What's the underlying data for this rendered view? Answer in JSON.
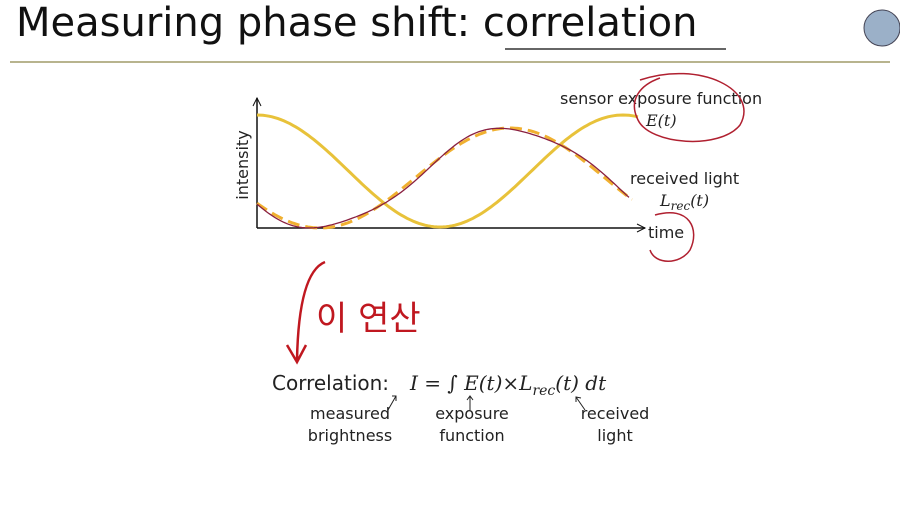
{
  "header": {
    "title_main": "Measuring phase shift: ",
    "title_emphasis": "correlation"
  },
  "diagram": {
    "y_axis_label": "intensity",
    "x_axis_label": "time",
    "exposure_label": "sensor exposure function",
    "exposure_symbol": "E(t)",
    "received_label": "received light",
    "received_symbol_base": "L",
    "received_symbol_sub": "rec",
    "received_symbol_tail": "(t)"
  },
  "handwriting": "이 연산",
  "formula": {
    "lead": "Correlation:",
    "part1": "I = ∫ E(t)×L",
    "sub": "rec",
    "part2": "(t) dt"
  },
  "annotations": [
    {
      "lines": [
        "measured",
        "brightness"
      ]
    },
    {
      "lines": [
        "exposure",
        "function"
      ]
    },
    {
      "lines": [
        "received",
        "light"
      ]
    }
  ]
}
